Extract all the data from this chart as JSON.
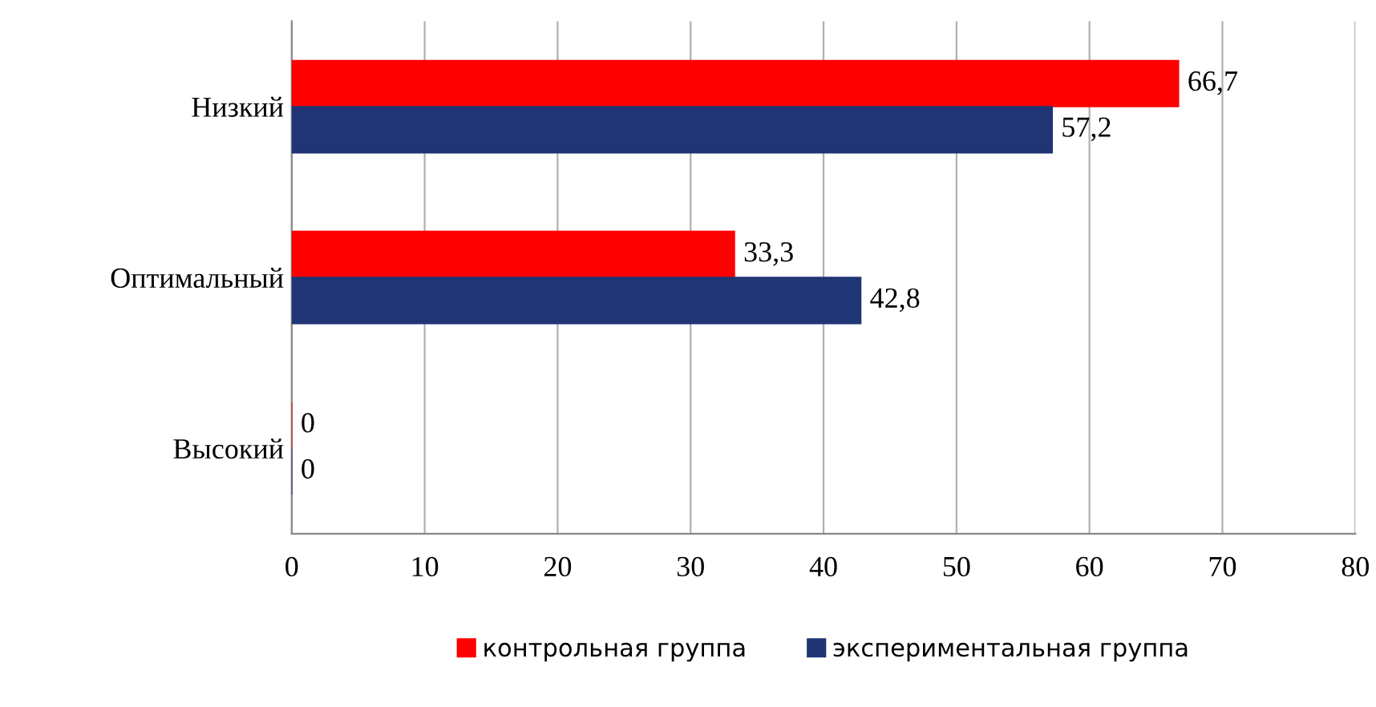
{
  "chart_data": {
    "type": "bar",
    "orientation": "horizontal",
    "categories": [
      "Низкий",
      "Оптимальный",
      "Высокий"
    ],
    "series": [
      {
        "name": "контрольная группа",
        "color": "#ff0000",
        "values": [
          66.7,
          33.3,
          0
        ],
        "value_labels": [
          "66,7",
          "33,3",
          "0"
        ]
      },
      {
        "name": "экспериментальная группа",
        "color": "#1f3575",
        "values": [
          57.2,
          42.8,
          0
        ],
        "value_labels": [
          "57,2",
          "42,8",
          "0"
        ]
      }
    ],
    "xlim": [
      0,
      80
    ],
    "xticks": [
      0,
      10,
      20,
      30,
      40,
      50,
      60,
      70,
      80
    ],
    "grid": "x",
    "legend": "bottom"
  }
}
